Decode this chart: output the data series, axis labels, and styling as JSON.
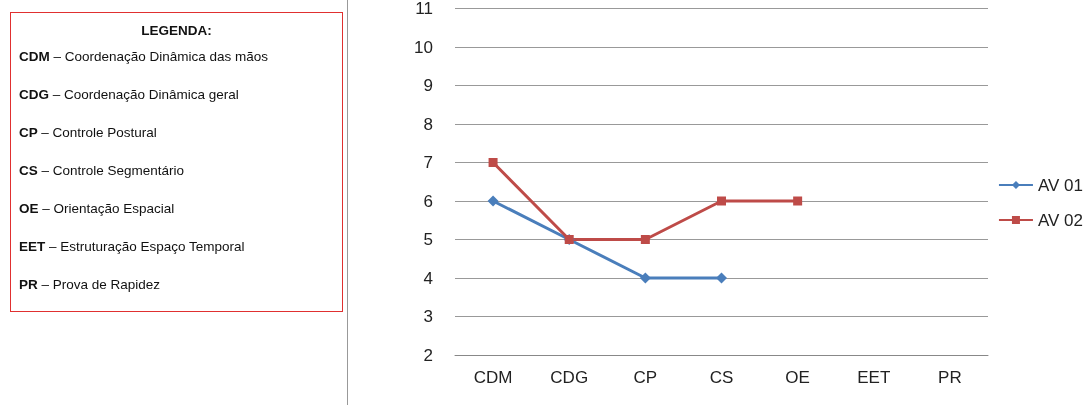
{
  "chart_data": {
    "type": "line",
    "categories": [
      "CDM",
      "CDG",
      "CP",
      "CS",
      "OE",
      "EET",
      "PR"
    ],
    "series": [
      {
        "name": "AV 01",
        "color": "#4a7ebb",
        "marker": "diamond",
        "values": [
          6,
          5,
          4,
          4,
          null,
          null,
          null
        ]
      },
      {
        "name": "AV 02",
        "color": "#be4b48",
        "marker": "square",
        "values": [
          7,
          5,
          5,
          6,
          6,
          null,
          null
        ]
      }
    ],
    "ylim": [
      2,
      11
    ],
    "yticks": [
      2,
      3,
      4,
      5,
      6,
      7,
      8,
      9,
      10,
      11
    ],
    "grid": "y",
    "legend": "right",
    "legend_title": "LEGENDA:",
    "annotations": [
      "CDM – Coordenação Dinâmica das mãos",
      "CDG – Coordenação Dinâmica geral",
      "CP – Controle Postural",
      "CS – Controle Segmentário",
      "OE – Orientação Espacial",
      "EET – Estruturação Espaço Temporal",
      "PR – Prova de Rapidez"
    ]
  }
}
